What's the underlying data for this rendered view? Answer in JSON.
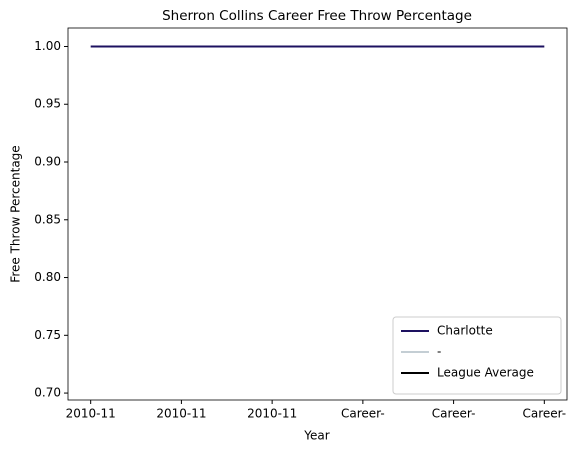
{
  "chart_data": {
    "type": "line",
    "title": "Sherron Collins Career Free Throw Percentage",
    "xlabel": "Year",
    "ylabel": "Free Throw Percentage",
    "categories": [
      "2010-11",
      "2010-11",
      "2010-11",
      "Career-",
      "Career-",
      "Career-"
    ],
    "series": [
      {
        "name": "Charlotte",
        "color": "#1d1160",
        "values": [
          1.0,
          1.0,
          1.0,
          1.0,
          1.0,
          1.0
        ]
      },
      {
        "name": "-",
        "color": "#c4ced4",
        "values": [
          null,
          null,
          null,
          null,
          null,
          null
        ]
      },
      {
        "name": "League Average",
        "color": "#000000",
        "values": [
          null,
          null,
          null,
          null,
          null,
          null
        ]
      }
    ],
    "ylim": [
      0.694,
      1.016
    ],
    "yticks": [
      {
        "value": 0.7,
        "label": "0.70"
      },
      {
        "value": 0.75,
        "label": "0.75"
      },
      {
        "value": 0.8,
        "label": "0.80"
      },
      {
        "value": 0.85,
        "label": "0.85"
      },
      {
        "value": 0.9,
        "label": "0.90"
      },
      {
        "value": 0.95,
        "label": "0.95"
      },
      {
        "value": 1.0,
        "label": "1.00"
      }
    ],
    "legend": "lower right",
    "grid": false
  }
}
